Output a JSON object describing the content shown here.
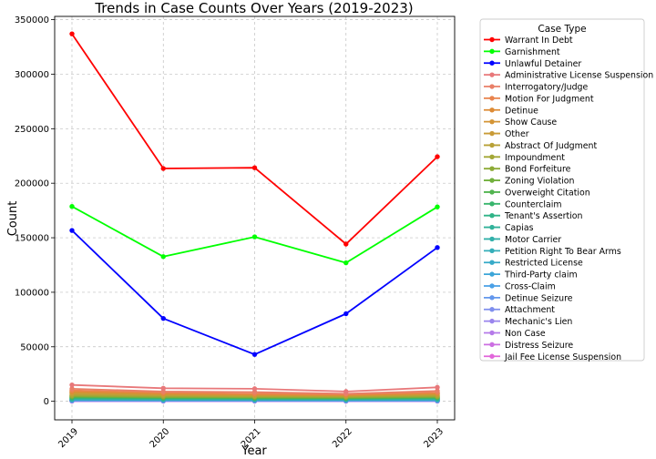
{
  "chart_data": {
    "type": "line",
    "title": "Trends in Case Counts Over Years (2019-2023)",
    "xlabel": "Year",
    "ylabel": "Count",
    "x": [
      "2019",
      "2020",
      "2021",
      "2022",
      "2023"
    ],
    "ylim": [
      -17000,
      353000
    ],
    "yticks": [
      0,
      50000,
      100000,
      150000,
      200000,
      250000,
      300000,
      350000
    ],
    "ytick_labels": [
      "0",
      "50000",
      "100000",
      "150000",
      "200000",
      "250000",
      "300000",
      "350000"
    ],
    "grid": true,
    "legend_title": "Case Type",
    "legend_position": "outside-right",
    "series": [
      {
        "name": "Warrant In Debt",
        "color": "#ff0000",
        "values": [
          337000,
          213500,
          214200,
          144200,
          224300
        ]
      },
      {
        "name": "Garnishment",
        "color": "#00ff00",
        "values": [
          178700,
          132700,
          150800,
          127000,
          178300
        ]
      },
      {
        "name": "Unlawful Detainer",
        "color": "#0000ff",
        "values": [
          156700,
          76000,
          43000,
          80300,
          141000
        ]
      },
      {
        "name": "Administrative License Suspension",
        "color": "#e8787a",
        "values": [
          15000,
          12000,
          11500,
          9000,
          12800
        ]
      },
      {
        "name": "Interrogatory/Judge",
        "color": "#e97f68",
        "values": [
          11500,
          9000,
          8500,
          7000,
          9500
        ]
      },
      {
        "name": "Motion For Judgment",
        "color": "#e9844e",
        "values": [
          10000,
          8000,
          7000,
          6500,
          8000
        ]
      },
      {
        "name": "Detinue",
        "color": "#dd8b35",
        "values": [
          9000,
          7200,
          6500,
          6000,
          7500
        ]
      },
      {
        "name": "Show Cause",
        "color": "#d49536",
        "values": [
          8500,
          7000,
          6200,
          5800,
          7200
        ]
      },
      {
        "name": "Other",
        "color": "#c99b37",
        "values": [
          7500,
          6200,
          5800,
          5200,
          6500
        ]
      },
      {
        "name": "Abstract Of Judgment",
        "color": "#b8a137",
        "values": [
          6500,
          5500,
          5000,
          4800,
          5800
        ]
      },
      {
        "name": "Impoundment",
        "color": "#a3a736",
        "values": [
          5500,
          4800,
          4500,
          4200,
          5000
        ]
      },
      {
        "name": "Bond Forfeiture",
        "color": "#8dab37",
        "values": [
          5000,
          4200,
          4000,
          3800,
          4500
        ]
      },
      {
        "name": "Zoning Violation",
        "color": "#72b03d",
        "values": [
          4500,
          3800,
          3600,
          3400,
          4000
        ]
      },
      {
        "name": "Overweight Citation",
        "color": "#52b450",
        "values": [
          4000,
          3400,
          3200,
          3000,
          3600
        ]
      },
      {
        "name": "Counterclaim",
        "color": "#38b56d",
        "values": [
          3500,
          3000,
          2800,
          2700,
          3200
        ]
      },
      {
        "name": "Tenant's Assertion",
        "color": "#30b387",
        "values": [
          3000,
          2600,
          2500,
          2400,
          2800
        ]
      },
      {
        "name": "Capias",
        "color": "#31b29a",
        "values": [
          2600,
          2300,
          2200,
          2100,
          2500
        ]
      },
      {
        "name": "Motor Carrier",
        "color": "#33b0aa",
        "values": [
          2200,
          2000,
          1900,
          1800,
          2100
        ]
      },
      {
        "name": "Petition Right To Bear Arms",
        "color": "#35aeb9",
        "values": [
          1800,
          1600,
          1600,
          1500,
          1700
        ]
      },
      {
        "name": "Restricted License",
        "color": "#37aac8",
        "values": [
          1500,
          1400,
          1300,
          1300,
          1400
        ]
      },
      {
        "name": "Third-Party claim",
        "color": "#3ca5d8",
        "values": [
          1200,
          1100,
          1100,
          1000,
          1100
        ]
      },
      {
        "name": "Cross-Claim",
        "color": "#4aa0e6",
        "values": [
          1000,
          900,
          900,
          800,
          900
        ]
      },
      {
        "name": "Detinue Seizure",
        "color": "#6498ec",
        "values": [
          800,
          700,
          700,
          600,
          700
        ]
      },
      {
        "name": "Attachment",
        "color": "#7f8fee",
        "values": [
          600,
          500,
          500,
          500,
          500
        ]
      },
      {
        "name": "Mechanic's Lien",
        "color": "#9a85ed",
        "values": [
          400,
          400,
          400,
          300,
          400
        ]
      },
      {
        "name": "Non Case",
        "color": "#b57ae9",
        "values": [
          300,
          300,
          300,
          200,
          300
        ]
      },
      {
        "name": "Distress Seizure",
        "color": "#cc6fe2",
        "values": [
          200,
          200,
          200,
          100,
          200
        ]
      },
      {
        "name": "Jail Fee License Suspension",
        "color": "#e166da",
        "values": [
          100,
          100,
          100,
          100,
          100
        ]
      }
    ]
  }
}
